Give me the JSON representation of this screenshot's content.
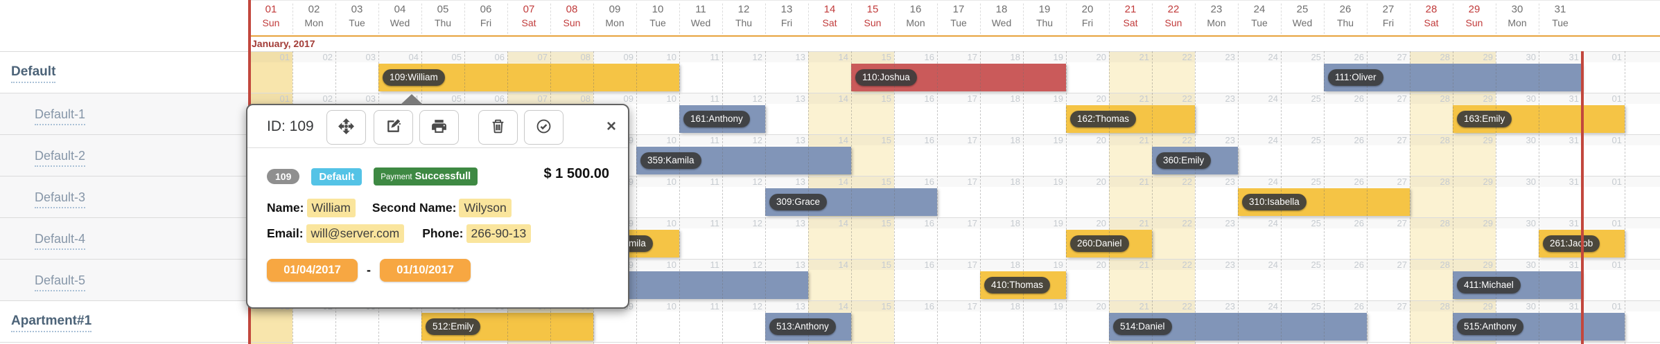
{
  "header": {
    "month_label": "January, 2017",
    "days": [
      {
        "num": "01",
        "name": "Sun",
        "weekend": true
      },
      {
        "num": "02",
        "name": "Mon",
        "weekend": false
      },
      {
        "num": "03",
        "name": "Tue",
        "weekend": false
      },
      {
        "num": "04",
        "name": "Wed",
        "weekend": false
      },
      {
        "num": "05",
        "name": "Thu",
        "weekend": false
      },
      {
        "num": "06",
        "name": "Fri",
        "weekend": false
      },
      {
        "num": "07",
        "name": "Sat",
        "weekend": true
      },
      {
        "num": "08",
        "name": "Sun",
        "weekend": true
      },
      {
        "num": "09",
        "name": "Mon",
        "weekend": false
      },
      {
        "num": "10",
        "name": "Tue",
        "weekend": false
      },
      {
        "num": "11",
        "name": "Wed",
        "weekend": false
      },
      {
        "num": "12",
        "name": "Thu",
        "weekend": false
      },
      {
        "num": "13",
        "name": "Fri",
        "weekend": false
      },
      {
        "num": "14",
        "name": "Sat",
        "weekend": true
      },
      {
        "num": "15",
        "name": "Sun",
        "weekend": true
      },
      {
        "num": "16",
        "name": "Mon",
        "weekend": false
      },
      {
        "num": "17",
        "name": "Tue",
        "weekend": false
      },
      {
        "num": "18",
        "name": "Wed",
        "weekend": false
      },
      {
        "num": "19",
        "name": "Thu",
        "weekend": false
      },
      {
        "num": "20",
        "name": "Fri",
        "weekend": false
      },
      {
        "num": "21",
        "name": "Sat",
        "weekend": true
      },
      {
        "num": "22",
        "name": "Sun",
        "weekend": true
      },
      {
        "num": "23",
        "name": "Mon",
        "weekend": false
      },
      {
        "num": "24",
        "name": "Tue",
        "weekend": false
      },
      {
        "num": "25",
        "name": "Wed",
        "weekend": false
      },
      {
        "num": "26",
        "name": "Thu",
        "weekend": false
      },
      {
        "num": "27",
        "name": "Fri",
        "weekend": false
      },
      {
        "num": "28",
        "name": "Sat",
        "weekend": true
      },
      {
        "num": "29",
        "name": "Sun",
        "weekend": true
      },
      {
        "num": "30",
        "name": "Mon",
        "weekend": false
      },
      {
        "num": "31",
        "name": "Tue",
        "weekend": false
      }
    ],
    "next_month_cell": "01"
  },
  "resources": [
    {
      "label": "Default",
      "level": "parent"
    },
    {
      "label": "Default-1",
      "level": "child"
    },
    {
      "label": "Default-2",
      "level": "child"
    },
    {
      "label": "Default-3",
      "level": "child"
    },
    {
      "label": "Default-4",
      "level": "child"
    },
    {
      "label": "Default-5",
      "level": "child"
    },
    {
      "label": "Apartment#1",
      "level": "parent"
    }
  ],
  "bookings": [
    {
      "row": 0,
      "label": "109:William",
      "start": 4,
      "end": 10,
      "color": "yellow"
    },
    {
      "row": 0,
      "label": "110:Joshua",
      "start": 15,
      "end": 19,
      "color": "red"
    },
    {
      "row": 0,
      "label": "111:Oliver",
      "start": 26,
      "end": 31,
      "color": "blue"
    },
    {
      "row": 1,
      "label": "161:Anthony",
      "start": 11,
      "end": 12,
      "color": "blue"
    },
    {
      "row": 1,
      "label": "162:Thomas",
      "start": 20,
      "end": 22,
      "color": "yellow"
    },
    {
      "row": 1,
      "label": "163:Emily",
      "start": 29,
      "end": 32,
      "color": "yellow"
    },
    {
      "row": 2,
      "label": "359:Kamila",
      "start": 10,
      "end": 14,
      "color": "blue"
    },
    {
      "row": 2,
      "label": "360:Emily",
      "start": 22,
      "end": 23,
      "color": "blue"
    },
    {
      "row": 3,
      "label": "309:Grace",
      "start": 13,
      "end": 16,
      "color": "blue"
    },
    {
      "row": 3,
      "label": "310:Isabella",
      "start": 24,
      "end": 27,
      "color": "yellow"
    },
    {
      "row": 4,
      "label": "mila",
      "start": 9,
      "end": 10,
      "color": "yellow",
      "label_dx": 41
    },
    {
      "row": 4,
      "label": "260:Daniel",
      "start": 20,
      "end": 21,
      "color": "yellow"
    },
    {
      "row": 4,
      "label": "261:Jacob",
      "start": 31,
      "end": 32,
      "color": "yellow"
    },
    {
      "row": 5,
      "label": "",
      "start": 6,
      "end": 13,
      "color": "blue"
    },
    {
      "row": 5,
      "label": "410:Thomas",
      "start": 18,
      "end": 19,
      "color": "yellow"
    },
    {
      "row": 5,
      "label": "411:Michael",
      "start": 29,
      "end": 31,
      "color": "blue"
    },
    {
      "row": 6,
      "label": "512:Emily",
      "start": 5,
      "end": 8,
      "color": "yellow"
    },
    {
      "row": 6,
      "label": "513:Anthony",
      "start": 13,
      "end": 14,
      "color": "blue"
    },
    {
      "row": 6,
      "label": "514:Daniel",
      "start": 21,
      "end": 26,
      "color": "blue"
    },
    {
      "row": 6,
      "label": "515:Anthony",
      "start": 29,
      "end": 32,
      "color": "blue"
    }
  ],
  "popup": {
    "id_label": "ID: 109",
    "toolbar_icons": [
      "move-icon",
      "edit-icon",
      "print-icon",
      "trash-icon",
      "check-circle-icon"
    ],
    "close_glyph": "×",
    "badges": {
      "id": "109",
      "category": "Default",
      "payment_label": "Payment",
      "payment_status": "Successfull"
    },
    "price": "$ 1 500.00",
    "fields": {
      "name_label": "Name:",
      "name": "William",
      "second_name_label": "Second Name:",
      "second_name": "Wilyson",
      "email_label": "Email:",
      "email": "will@server.com",
      "phone_label": "Phone:",
      "phone": "266-90-13"
    },
    "date_from": "01/04/2017",
    "date_separator": "-",
    "date_to": "01/10/2017"
  },
  "colors": {
    "bar_yellow": "#F5C445",
    "bar_blue": "#8195B8",
    "bar_red": "#CA5A5A",
    "weekend_tint": "#FBF2D2",
    "first_day_tint": "#F8E5AC",
    "month_line": "#E7A33C",
    "boundary_line": "#C2473D",
    "panel_child_bg": "#F7F7F8",
    "accent_orange": "#F7A742",
    "accent_blue": "#54C3E6",
    "accent_green": "#3E8943",
    "highlight_yellow": "#FAE59D"
  }
}
